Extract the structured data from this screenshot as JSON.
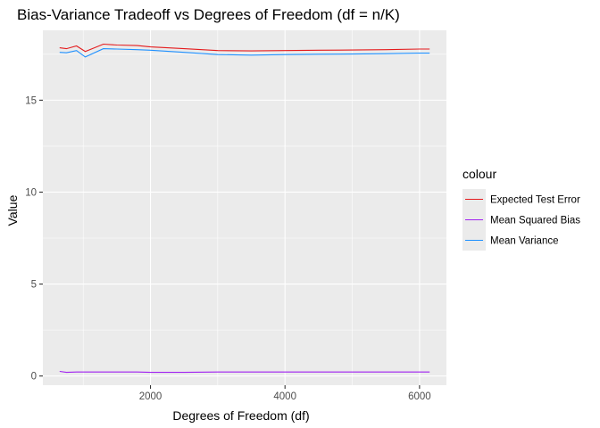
{
  "chart_data": {
    "type": "line",
    "title": "Bias-Variance Tradeoff vs Degrees of Freedom (df = n/K)",
    "xlabel": "Degrees of Freedom (df)",
    "ylabel": "Value",
    "xlim": [
      400,
      6400
    ],
    "ylim": [
      -0.5,
      18.8
    ],
    "xticks": [
      2000,
      4000,
      6000
    ],
    "yticks": [
      0,
      5,
      10,
      15
    ],
    "grid": true,
    "legend": {
      "title": "colour",
      "position": "right"
    },
    "x": [
      650,
      750,
      900,
      1030,
      1300,
      1500,
      1800,
      2000,
      2500,
      3000,
      3500,
      4000,
      4500,
      5000,
      5500,
      6000,
      6150
    ],
    "series": [
      {
        "name": "Expected Test Error",
        "color": "#e41a1c",
        "values": [
          17.85,
          17.8,
          17.95,
          17.65,
          18.05,
          18.0,
          17.97,
          17.9,
          17.8,
          17.7,
          17.68,
          17.7,
          17.72,
          17.73,
          17.75,
          17.78,
          17.78
        ]
      },
      {
        "name": "Mean Squared Bias",
        "color": "#a020f0",
        "values": [
          0.25,
          0.2,
          0.22,
          0.22,
          0.22,
          0.22,
          0.22,
          0.2,
          0.2,
          0.22,
          0.22,
          0.22,
          0.22,
          0.22,
          0.22,
          0.22,
          0.22
        ]
      },
      {
        "name": "Mean Variance",
        "color": "#1e90ff",
        "values": [
          17.6,
          17.58,
          17.7,
          17.35,
          17.8,
          17.78,
          17.75,
          17.72,
          17.6,
          17.48,
          17.45,
          17.48,
          17.5,
          17.51,
          17.53,
          17.56,
          17.56
        ]
      }
    ]
  }
}
